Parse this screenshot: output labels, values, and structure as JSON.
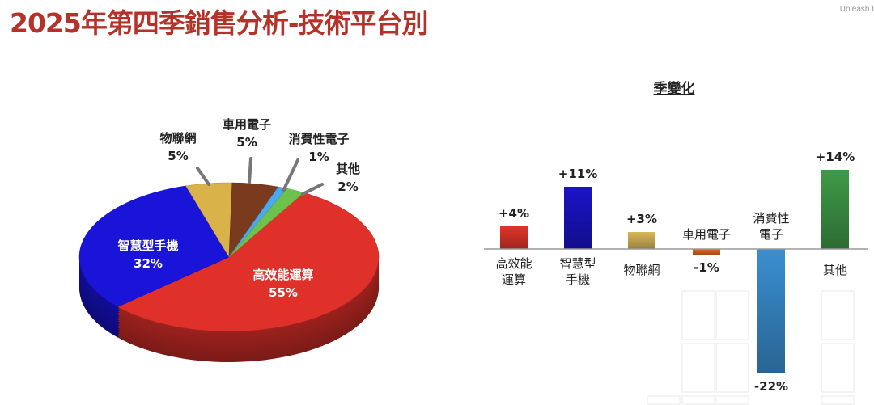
{
  "title": "2025年第四季銷售分析-技術平台別",
  "brand": "Unleash I",
  "chart_data": [
    {
      "type": "pie",
      "style": "3d",
      "slices": [
        {
          "label": "高效能運算",
          "value": 55,
          "display": "55%",
          "color": "#e0302a"
        },
        {
          "label": "智慧型手機",
          "value": 32,
          "display": "32%",
          "color": "#1a13d8"
        },
        {
          "label": "物聯網",
          "value": 5,
          "display": "5%",
          "color": "#d9b24a"
        },
        {
          "label": "車用電子",
          "value": 5,
          "display": "5%",
          "color": "#7a3a1e"
        },
        {
          "label": "消費性電子",
          "value": 1,
          "display": "1%",
          "color": "#4aa8f0"
        },
        {
          "label": "其他",
          "value": 2,
          "display": "2%",
          "color": "#6cc24a"
        }
      ]
    },
    {
      "type": "bar",
      "title": "季變化",
      "categories": [
        "高效能\n運算",
        "智慧型\n手機",
        "物聯網",
        "車用電子",
        "消費性\n電子",
        "其他"
      ],
      "values": [
        4,
        11,
        3,
        -1,
        -22,
        14
      ],
      "labels": [
        "+4%",
        "+11%",
        "+3%",
        "-1%",
        "-22%",
        "+14%"
      ],
      "colors": [
        "#e0352a",
        "#1a14c8",
        "#d9b85a",
        "#e06a2a",
        "#3a8fd0",
        "#3f9a48"
      ],
      "unit": "%"
    }
  ]
}
